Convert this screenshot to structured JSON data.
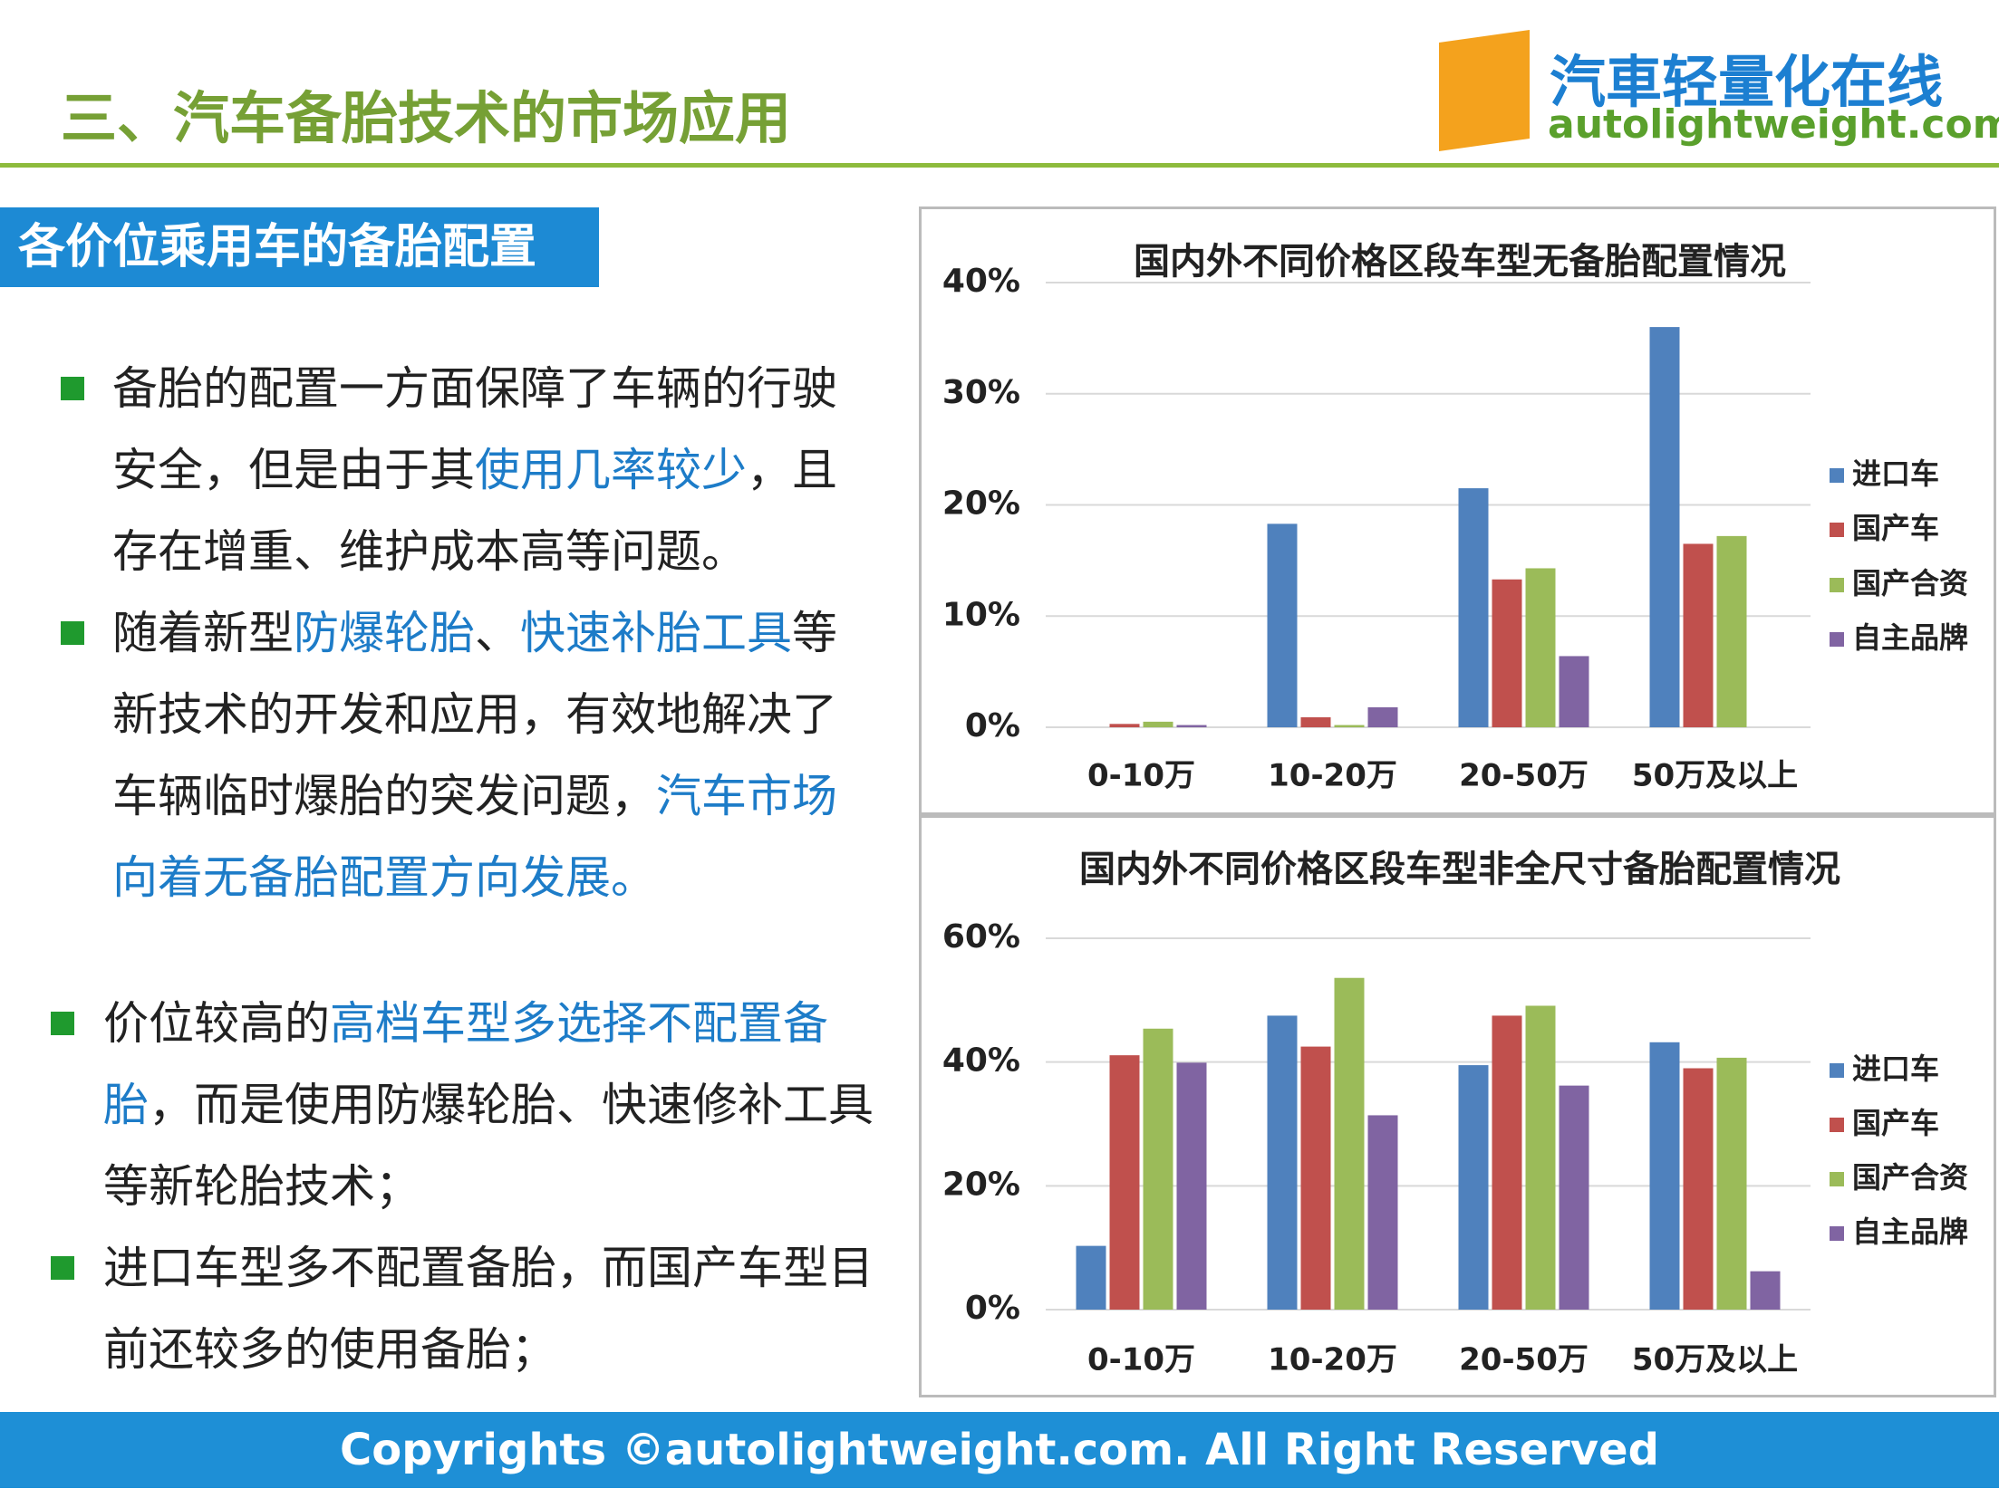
{
  "header": {
    "title": "三、汽车备胎技术的市场应用",
    "logo_cn": "汽車轻量化在线",
    "logo_en": "autolightweight.com"
  },
  "section_label": "各价位乘用车的备胎配置",
  "bullets": [
    [
      {
        "text": "备胎的配置一方面保障了车辆的行驶安全，但是由于其"
      },
      {
        "text": "使用几率较少",
        "emphasis": true
      },
      {
        "text": "，且存在增重、维护成本高等问题。"
      }
    ],
    [
      {
        "text": "随着新型"
      },
      {
        "text": "防爆轮胎",
        "emphasis": true
      },
      {
        "text": "、"
      },
      {
        "text": "快速补胎工具",
        "emphasis": true
      },
      {
        "text": "等新技术的开发和应用，有效地解决了车辆临时爆胎的突发问题，"
      },
      {
        "text": "汽车市场向着无备胎配置方向发展。",
        "emphasis": true
      }
    ],
    [
      {
        "text": "价位较高的"
      },
      {
        "text": "高档车型多选择不配置备胎",
        "emphasis": true
      },
      {
        "text": "，而是使用防爆轮胎、快速修补工具等新轮胎技术；"
      }
    ],
    [
      {
        "text": "进口车型多不配置备胎，而国产车型目前还较多的使用备胎；"
      }
    ]
  ],
  "footer": "Copyrights ©autolightweight.com. All Right Reserved",
  "chart_data": [
    {
      "type": "bar",
      "title": "国内外不同价格区段车型无备胎配置情况",
      "categories": [
        "0-10万",
        "10-20万",
        "20-50万",
        "50万及以上"
      ],
      "series": [
        {
          "name": "进口车",
          "color": "#4f81bd",
          "values": [
            0,
            18.3,
            21.5,
            36
          ]
        },
        {
          "name": "国产车",
          "color": "#c0504d",
          "values": [
            0.3,
            0.9,
            13.3,
            16.5
          ]
        },
        {
          "name": "国产合资",
          "color": "#9bbb59",
          "values": [
            0.5,
            0.2,
            14.3,
            17.2
          ]
        },
        {
          "name": "自主品牌",
          "color": "#8064a2",
          "values": [
            0.2,
            1.8,
            6.4,
            0
          ]
        }
      ],
      "ylim": [
        0,
        40
      ],
      "yticks": [
        {
          "value": 0,
          "label": "0%"
        },
        {
          "value": 10,
          "label": "10%"
        },
        {
          "value": 20,
          "label": "20%"
        },
        {
          "value": 30,
          "label": "30%"
        },
        {
          "value": 40,
          "label": "40%"
        }
      ],
      "grid": true,
      "legend": "right"
    },
    {
      "type": "bar",
      "title": "国内外不同价格区段车型非全尺寸备胎配置情况",
      "categories": [
        "0-10万",
        "10-20万",
        "20-50万",
        "50万及以上"
      ],
      "series": [
        {
          "name": "进口车",
          "color": "#4f81bd",
          "values": [
            10.3,
            47.5,
            39.5,
            43.2
          ]
        },
        {
          "name": "国产车",
          "color": "#c0504d",
          "values": [
            41.1,
            42.5,
            47.5,
            39
          ]
        },
        {
          "name": "国产合资",
          "color": "#9bbb59",
          "values": [
            45.4,
            53.6,
            49.1,
            40.7
          ]
        },
        {
          "name": "自主品牌",
          "color": "#8064a2",
          "values": [
            39.9,
            31.4,
            36.2,
            6.2
          ]
        }
      ],
      "ylim": [
        0,
        60
      ],
      "yticks": [
        {
          "value": 0,
          "label": "0%"
        },
        {
          "value": 20,
          "label": "20%"
        },
        {
          "value": 40,
          "label": "40%"
        },
        {
          "value": 60,
          "label": "60%"
        }
      ],
      "grid": true,
      "legend": "right"
    }
  ]
}
